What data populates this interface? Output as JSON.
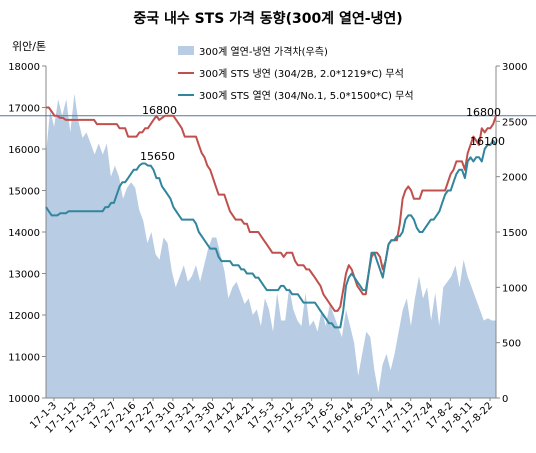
{
  "chart_data": {
    "type": "line",
    "title": "중국 내수 STS 가격 동향(300계 열연-냉연)",
    "ylabel_left": "위안/톤",
    "ylim_left": [
      10000,
      18000
    ],
    "ylim_right": [
      0,
      3000
    ],
    "yticks_left": [
      10000,
      11000,
      12000,
      13000,
      14000,
      15000,
      16000,
      17000,
      18000
    ],
    "yticks_right": [
      0,
      500,
      1000,
      1500,
      2000,
      2500,
      3000
    ],
    "ytick_labels_left": [
      "10000",
      "11000",
      "12000",
      "13000",
      "14000",
      "15000",
      "16000",
      "17000",
      "18000"
    ],
    "ytick_labels_right": [
      "0",
      "500",
      "1000",
      "1500",
      "2000",
      "2500",
      "3000"
    ],
    "xtick_labels": [
      "17-1-3",
      "17-1-12",
      "17-1-23",
      "17-2-7",
      "17-2-16",
      "17-2-27",
      "17-3-10",
      "17-3-21",
      "17-3-30",
      "17-4-12",
      "17-4-21",
      "17-5-3",
      "17-5-12",
      "17-5-23",
      "17-6-5",
      "17-6-14",
      "17-6-23",
      "17-7-4",
      "17-7-13",
      "17-7-24",
      "17-8-2",
      "17-8-11",
      "17-8-22"
    ],
    "x_count": 160,
    "reference_line": {
      "value": 16800,
      "color": "#4a78a8"
    },
    "series": [
      {
        "name": "300계 열연-냉연 가격차(우측)",
        "type": "area",
        "axis": "right",
        "color": "#b8cce4",
        "points": [
          [
            0,
            2200
          ],
          [
            2,
            2600
          ],
          [
            4,
            2450
          ],
          [
            6,
            2700
          ],
          [
            8,
            2550
          ],
          [
            10,
            2700
          ],
          [
            12,
            2400
          ],
          [
            14,
            2750
          ],
          [
            16,
            2500
          ],
          [
            18,
            2350
          ],
          [
            20,
            2400
          ],
          [
            22,
            2300
          ],
          [
            24,
            2200
          ],
          [
            26,
            2300
          ],
          [
            28,
            2200
          ],
          [
            30,
            2300
          ],
          [
            32,
            2000
          ],
          [
            34,
            2100
          ],
          [
            36,
            2000
          ],
          [
            38,
            1800
          ],
          [
            40,
            1900
          ],
          [
            42,
            1950
          ],
          [
            44,
            1900
          ],
          [
            46,
            1700
          ],
          [
            48,
            1600
          ],
          [
            50,
            1400
          ],
          [
            52,
            1500
          ],
          [
            54,
            1300
          ],
          [
            56,
            1250
          ],
          [
            58,
            1450
          ],
          [
            60,
            1400
          ],
          [
            62,
            1150
          ],
          [
            64,
            1000
          ],
          [
            66,
            1100
          ],
          [
            68,
            1200
          ],
          [
            70,
            1050
          ],
          [
            72,
            1100
          ],
          [
            74,
            1200
          ],
          [
            76,
            1050
          ],
          [
            78,
            1200
          ],
          [
            80,
            1350
          ],
          [
            82,
            1450
          ],
          [
            84,
            1450
          ],
          [
            86,
            1300
          ],
          [
            88,
            1150
          ],
          [
            90,
            900
          ],
          [
            92,
            1000
          ],
          [
            94,
            1050
          ],
          [
            96,
            950
          ],
          [
            98,
            850
          ],
          [
            100,
            900
          ],
          [
            102,
            750
          ],
          [
            104,
            800
          ],
          [
            106,
            650
          ],
          [
            108,
            900
          ],
          [
            110,
            800
          ],
          [
            112,
            600
          ],
          [
            114,
            950
          ],
          [
            116,
            700
          ],
          [
            118,
            700
          ],
          [
            120,
            1000
          ],
          [
            122,
            800
          ],
          [
            124,
            700
          ],
          [
            126,
            650
          ],
          [
            128,
            950
          ],
          [
            130,
            650
          ],
          [
            132,
            700
          ],
          [
            134,
            600
          ],
          [
            136,
            800
          ],
          [
            138,
            650
          ],
          [
            140,
            850
          ],
          [
            142,
            750
          ],
          [
            144,
            650
          ],
          [
            146,
            550
          ],
          [
            148,
            800
          ],
          [
            150,
            650
          ],
          [
            152,
            500
          ],
          [
            154,
            200
          ],
          [
            156,
            400
          ],
          [
            158,
            600
          ],
          [
            160,
            550
          ],
          [
            162,
            250
          ],
          [
            164,
            50
          ],
          [
            166,
            300
          ],
          [
            168,
            400
          ],
          [
            170,
            250
          ],
          [
            172,
            400
          ],
          [
            174,
            600
          ],
          [
            176,
            800
          ],
          [
            178,
            900
          ],
          [
            180,
            650
          ],
          [
            182,
            900
          ],
          [
            184,
            1100
          ],
          [
            186,
            900
          ],
          [
            188,
            1000
          ],
          [
            190,
            700
          ],
          [
            192,
            950
          ],
          [
            194,
            650
          ],
          [
            196,
            1000
          ],
          [
            198,
            1050
          ],
          [
            200,
            1100
          ],
          [
            202,
            1200
          ],
          [
            204,
            1000
          ],
          [
            206,
            1250
          ],
          [
            208,
            1100
          ],
          [
            210,
            1000
          ],
          [
            212,
            900
          ],
          [
            214,
            800
          ],
          [
            216,
            700
          ],
          [
            218,
            720
          ],
          [
            220,
            700
          ],
          [
            222,
            700
          ]
        ],
        "x_max": 222
      },
      {
        "name": "300계 STS 냉연 (304/2B, 2.0*1219*C) 무석",
        "type": "line",
        "axis": "left",
        "color": "#c0504d",
        "values": [
          17000,
          17000,
          16900,
          16800,
          16800,
          16750,
          16750,
          16700,
          16700,
          16700,
          16700,
          16700,
          16700,
          16700,
          16700,
          16700,
          16700,
          16700,
          16600,
          16600,
          16600,
          16600,
          16600,
          16600,
          16600,
          16600,
          16500,
          16500,
          16500,
          16300,
          16300,
          16300,
          16300,
          16400,
          16400,
          16500,
          16500,
          16600,
          16700,
          16800,
          16700,
          16750,
          16800,
          16800,
          16800,
          16800,
          16700,
          16600,
          16500,
          16300,
          16300,
          16300,
          16300,
          16300,
          16100,
          15900,
          15800,
          15600,
          15500,
          15300,
          15100,
          14900,
          14900,
          14900,
          14700,
          14500,
          14400,
          14300,
          14300,
          14300,
          14200,
          14200,
          14000,
          14000,
          14000,
          14000,
          13900,
          13800,
          13700,
          13600,
          13500,
          13500,
          13500,
          13500,
          13400,
          13500,
          13500,
          13500,
          13300,
          13200,
          13200,
          13200,
          13100,
          13100,
          13000,
          12900,
          12800,
          12700,
          12500,
          12400,
          12300,
          12200,
          12100,
          12100,
          12200,
          12600,
          13000,
          13200,
          13100,
          12900,
          12700,
          12600,
          12500,
          12500,
          13000,
          13400,
          13500,
          13500,
          13400,
          13100,
          13300,
          13700,
          13800,
          13800,
          13800,
          14200,
          14800,
          15000,
          15100,
          15000,
          14800,
          14800,
          14800,
          15000,
          15000,
          15000,
          15000,
          15000,
          15000,
          15000,
          15000,
          15000,
          15200,
          15400,
          15500,
          15700,
          15700,
          15700,
          15500,
          15900,
          16100,
          16300,
          16200,
          16100,
          16500,
          16400,
          16500,
          16500,
          16600,
          16800
        ]
      },
      {
        "name": "300계 STS 열연 (304/No.1, 5.0*1500*C) 무석",
        "type": "line",
        "axis": "left",
        "color": "#31859c",
        "values": [
          14600,
          14500,
          14400,
          14400,
          14400,
          14450,
          14450,
          14450,
          14500,
          14500,
          14500,
          14500,
          14500,
          14500,
          14500,
          14500,
          14500,
          14500,
          14500,
          14500,
          14500,
          14600,
          14600,
          14700,
          14700,
          14900,
          15100,
          15200,
          15200,
          15300,
          15400,
          15500,
          15500,
          15600,
          15650,
          15650,
          15600,
          15600,
          15500,
          15300,
          15300,
          15100,
          15000,
          14900,
          14800,
          14600,
          14500,
          14400,
          14300,
          14300,
          14300,
          14300,
          14300,
          14200,
          14000,
          13900,
          13800,
          13700,
          13600,
          13600,
          13600,
          13400,
          13300,
          13300,
          13300,
          13300,
          13200,
          13200,
          13200,
          13100,
          13100,
          13000,
          13000,
          13000,
          12900,
          12900,
          12800,
          12700,
          12600,
          12600,
          12600,
          12600,
          12600,
          12700,
          12700,
          12600,
          12600,
          12500,
          12500,
          12500,
          12400,
          12300,
          12300,
          12300,
          12300,
          12300,
          12200,
          12100,
          12000,
          11900,
          11800,
          11800,
          11700,
          11700,
          11700,
          12100,
          12700,
          12900,
          13000,
          12900,
          12800,
          12700,
          12600,
          12600,
          13000,
          13500,
          13500,
          13300,
          13100,
          12900,
          13300,
          13700,
          13800,
          13800,
          13900,
          13900,
          14000,
          14300,
          14400,
          14400,
          14300,
          14100,
          14000,
          14000,
          14100,
          14200,
          14300,
          14300,
          14400,
          14500,
          14700,
          14900,
          15000,
          15000,
          15200,
          15400,
          15500,
          15500,
          15300,
          15700,
          15800,
          15700,
          15800,
          15800,
          15700,
          16000,
          16100,
          16100,
          16200,
          16100
        ]
      }
    ],
    "annotations": [
      "16800",
      "15650",
      "16800",
      "16100"
    ]
  }
}
